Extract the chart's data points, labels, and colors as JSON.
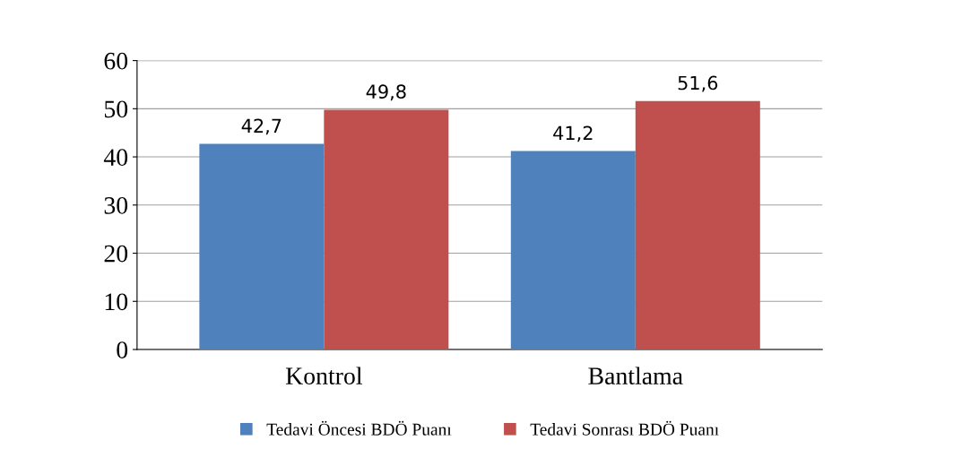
{
  "chart_data": {
    "type": "bar",
    "categories": [
      "Kontrol",
      "Bantlama"
    ],
    "series": [
      {
        "name": "Tedavi Öncesi BDÖ Puanı",
        "color": "#4f81bd",
        "values": [
          42.7,
          41.2
        ],
        "value_labels": [
          "42,7",
          "41,2"
        ]
      },
      {
        "name": "Tedavi Sonrası BDÖ Puanı",
        "color": "#c0504d",
        "values": [
          49.8,
          51.6
        ],
        "value_labels": [
          "49,8",
          "51,6"
        ]
      }
    ],
    "ylim": [
      0,
      60
    ],
    "yticks": [
      0,
      10,
      20,
      30,
      40,
      50,
      60
    ],
    "grid": "y",
    "legend": "bottom"
  }
}
